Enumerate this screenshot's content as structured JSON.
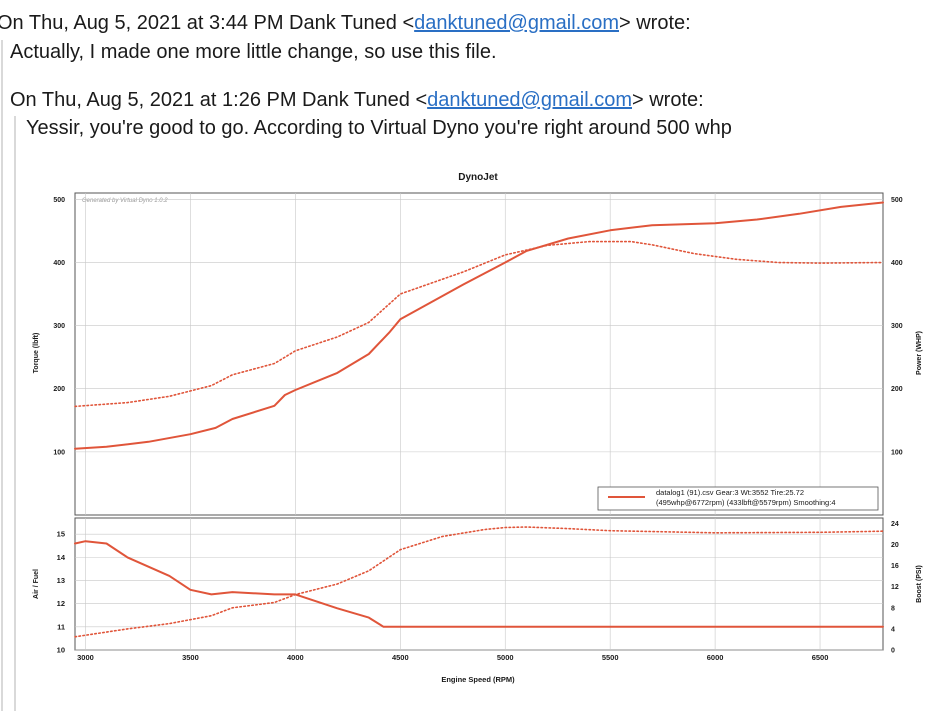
{
  "email": {
    "header1": {
      "prefix": "On Thu, Aug 5, 2021 at 3:44 PM Dank Tuned <",
      "address": "danktuned@gmail.com",
      "suffix": "> wrote:"
    },
    "body1": "Actually, I made one more little change, so use this file.",
    "header2": {
      "prefix": "On Thu, Aug 5, 2021 at 1:26 PM Dank Tuned <",
      "address": "danktuned@gmail.com",
      "suffix": "> wrote:"
    },
    "body2": "Yessir, you're good to go. According to Virtual Dyno you're right around 500 whp"
  },
  "chart": {
    "title": "DynoJet",
    "watermark": "Generated by Virtual Dyno 1.0.2",
    "xlabel": "Engine Speed (RPM)",
    "top_ylabel_left": "Torque (lbft)",
    "top_ylabel_right": "Power (WHP)",
    "bottom_ylabel_left": "Air / Fuel",
    "bottom_ylabel_right": "Boost (PSI)",
    "legend_line1": "datalog1 (91).csv Gear:3 Wt:3552 Tire:25.72",
    "legend_line2": "(495whp@6772rpm) (433lbft@5579rpm) Smoothing:4",
    "line_color": "#e0553a"
  },
  "chart_data": [
    {
      "type": "line",
      "title": "DynoJet",
      "xlabel": "",
      "ylabel": "Torque (lbft)",
      "ylabel_right": "Power (WHP)",
      "xlim": [
        2950,
        6800
      ],
      "ylim": [
        0,
        510
      ],
      "yticks": [
        100,
        200,
        300,
        400,
        500
      ],
      "grid": true,
      "legend_position": "bottom-right",
      "series": [
        {
          "name": "datalog1 (91).csv Gear:3 Wt:3552 Tire:25.72",
          "style": "solid",
          "x": [
            2950,
            3100,
            3300,
            3500,
            3620,
            3700,
            3900,
            3950,
            4000,
            4200,
            4350,
            4450,
            4500,
            4800,
            5000,
            5100,
            5300,
            5500,
            5700,
            6000,
            6200,
            6400,
            6600,
            6800
          ],
          "y": [
            105,
            108,
            116,
            128,
            138,
            152,
            173,
            190,
            198,
            225,
            255,
            290,
            310,
            365,
            400,
            418,
            438,
            451,
            459,
            462,
            468,
            477,
            488,
            495
          ]
        },
        {
          "name": "",
          "style": "dotted",
          "x": [
            2950,
            3200,
            3400,
            3600,
            3700,
            3900,
            3950,
            4000,
            4200,
            4350,
            4450,
            4500,
            4800,
            5000,
            5200,
            5400,
            5600,
            5700,
            5900,
            6100,
            6300,
            6500,
            6800
          ],
          "y": [
            172,
            178,
            188,
            205,
            222,
            240,
            250,
            260,
            282,
            305,
            335,
            350,
            385,
            412,
            427,
            433,
            433,
            428,
            414,
            405,
            400,
            399,
            400
          ]
        }
      ]
    },
    {
      "type": "line",
      "xlabel": "Engine Speed (RPM)",
      "ylabel": "Air / Fuel",
      "ylabel_right": "Boost (PSI)",
      "xlim": [
        2950,
        6800
      ],
      "ylim": [
        10,
        15.7
      ],
      "yticks": [
        10,
        11,
        12,
        13,
        14,
        15
      ],
      "y2lim": [
        0,
        25
      ],
      "y2ticks": [
        0,
        4,
        8,
        12,
        16,
        20,
        24
      ],
      "xticks": [
        3000,
        3500,
        4000,
        4500,
        5000,
        5500,
        6000,
        6500
      ],
      "grid": true,
      "series": [
        {
          "name": "",
          "style": "solid",
          "axis": "left",
          "x": [
            2950,
            3000,
            3100,
            3200,
            3400,
            3500,
            3600,
            3700,
            3900,
            4000,
            4200,
            4350,
            4420,
            4500,
            5000,
            6000,
            6800
          ],
          "y": [
            14.6,
            14.7,
            14.6,
            14.0,
            13.2,
            12.6,
            12.4,
            12.5,
            12.4,
            12.4,
            11.8,
            11.4,
            11.0,
            11.0,
            11.0,
            11.0,
            11.0
          ]
        },
        {
          "name": "",
          "style": "dotted",
          "axis": "right",
          "x": [
            2950,
            3200,
            3400,
            3600,
            3700,
            3900,
            4000,
            4200,
            4350,
            4500,
            4700,
            4900,
            5000,
            5100,
            5300,
            5500,
            6000,
            6500,
            6800
          ],
          "y": [
            2.5,
            4.0,
            5.0,
            6.5,
            8.0,
            9.0,
            10.5,
            12.5,
            15.0,
            19.0,
            21.5,
            22.8,
            23.2,
            23.3,
            23.0,
            22.6,
            22.2,
            22.3,
            22.5
          ]
        }
      ]
    }
  ]
}
